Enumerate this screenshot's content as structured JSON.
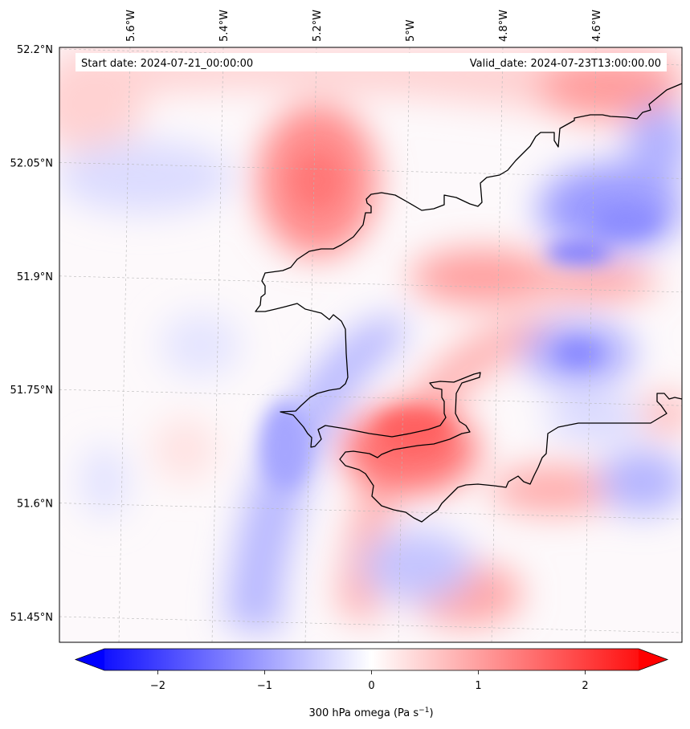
{
  "info": {
    "start_date": "Start date: 2024-07-21_00:00:00",
    "valid_date": "Valid_date: 2024-07-23T13:00:00.00"
  },
  "map": {
    "lon_ticks": [
      {
        "value": -5.6,
        "label": "5.6°W"
      },
      {
        "value": -5.4,
        "label": "5.4°W"
      },
      {
        "value": -5.2,
        "label": "5.2°W"
      },
      {
        "value": -5.0,
        "label": "5°W"
      },
      {
        "value": -4.8,
        "label": "4.8°W"
      },
      {
        "value": -4.6,
        "label": "4.6°W"
      }
    ],
    "lat_ticks": [
      {
        "value": 52.2,
        "label": "52.2°N"
      },
      {
        "value": 52.05,
        "label": "52.05°N"
      },
      {
        "value": 51.9,
        "label": "51.9°N"
      },
      {
        "value": 51.75,
        "label": "51.75°N"
      },
      {
        "value": 51.6,
        "label": "51.6°N"
      },
      {
        "value": 51.45,
        "label": "51.45°N"
      }
    ],
    "gridlines": true,
    "colors": {
      "negative": "#0000ff",
      "zero": "#ffffff",
      "positive": "#ff0000",
      "coastline": "#000000"
    }
  },
  "colorbar": {
    "min": -2.5,
    "max": 2.5,
    "ticks": [
      {
        "value": -2,
        "label": "−2"
      },
      {
        "value": -1,
        "label": "−1"
      },
      {
        "value": 0,
        "label": "0"
      },
      {
        "value": 1,
        "label": "1"
      },
      {
        "value": 2,
        "label": "2"
      }
    ],
    "label": "300 hPa omega (Pa s",
    "label_sup": "−1",
    "label_end": ")",
    "extend": "both"
  }
}
